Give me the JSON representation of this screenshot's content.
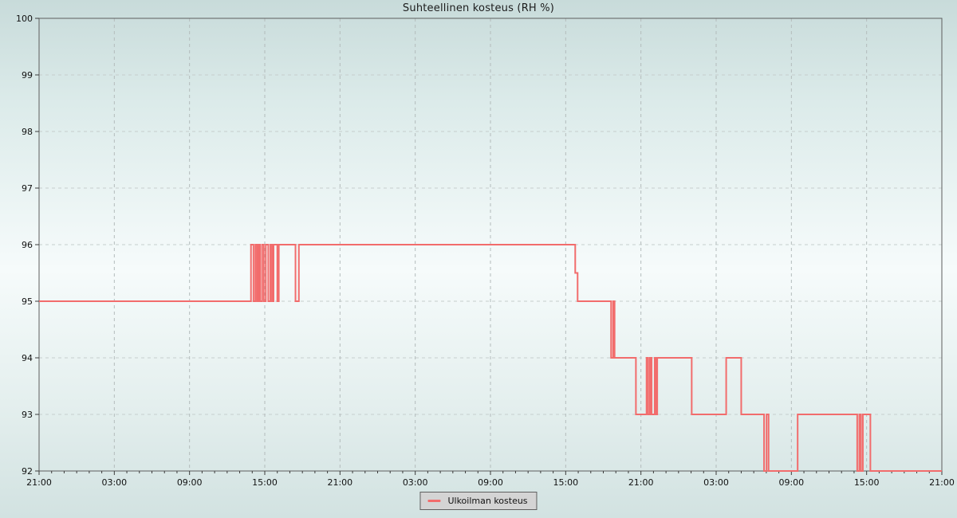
{
  "title": "Suhteellinen kosteus (RH %)",
  "legend": {
    "position": "bottom-center",
    "items": [
      {
        "label": "Ulkoilman kosteus",
        "color": "#f26c6c"
      }
    ]
  },
  "colors": {
    "line": "#f26c6c",
    "frame": "#5d5d5d",
    "grid_horizontal": "#c6cecd",
    "grid_vertical": "#b3bbbb",
    "background_top": "#c8dbda",
    "background_middle": "#f6fbfb",
    "background_bottom": "#d2e2e1",
    "legend_background": "#d4d4d4"
  },
  "chart_data": {
    "type": "line",
    "line_style": "step-after",
    "title": "Suhteellinen kosteus (RH %)",
    "xlabel": "",
    "ylabel": "",
    "grid": "dashed",
    "legend_position": "bottom-center",
    "ylim": [
      92,
      100
    ],
    "y_ticks": [
      100,
      99,
      98,
      97,
      96,
      95,
      94,
      93,
      92
    ],
    "x_hours_range": [
      0,
      72
    ],
    "x_major_step_hours": 6,
    "x_minor_step_hours": 1,
    "x_tick_labels": [
      "21:00",
      "03:00",
      "09:00",
      "15:00",
      "21:00",
      "03:00",
      "09:00",
      "15:00",
      "21:00",
      "03:00",
      "09:00",
      "15:00",
      "21:00"
    ],
    "series": [
      {
        "name": "Ulkoilman kosteus",
        "unit": "RH %",
        "color": "#f26c6c",
        "steps_format": "[hours_since_first_21:00, RH_percent] value holds until next entry",
        "steps": [
          [
            0,
            95
          ],
          [
            16.9,
            96
          ],
          [
            17.1,
            95
          ],
          [
            17.25,
            96
          ],
          [
            17.38,
            95
          ],
          [
            17.5,
            96
          ],
          [
            17.62,
            95
          ],
          [
            17.78,
            96
          ],
          [
            17.92,
            95
          ],
          [
            18.08,
            96
          ],
          [
            18.28,
            95
          ],
          [
            18.45,
            96
          ],
          [
            18.58,
            95
          ],
          [
            18.7,
            96
          ],
          [
            19.0,
            95
          ],
          [
            19.12,
            96
          ],
          [
            20.45,
            95
          ],
          [
            20.72,
            96
          ],
          [
            42.76,
            95.5
          ],
          [
            42.95,
            95
          ],
          [
            45.62,
            94
          ],
          [
            45.78,
            95
          ],
          [
            45.9,
            94
          ],
          [
            47.6,
            93
          ],
          [
            48.45,
            94
          ],
          [
            48.58,
            93
          ],
          [
            48.72,
            94
          ],
          [
            48.85,
            93
          ],
          [
            49.1,
            94
          ],
          [
            49.2,
            93
          ],
          [
            49.3,
            94
          ],
          [
            52.05,
            93
          ],
          [
            54.8,
            94
          ],
          [
            56.0,
            93
          ],
          [
            57.82,
            92
          ],
          [
            58.02,
            93
          ],
          [
            58.18,
            92
          ],
          [
            60.5,
            93
          ],
          [
            65.25,
            92
          ],
          [
            65.42,
            93
          ],
          [
            65.55,
            92
          ],
          [
            65.7,
            93
          ],
          [
            66.3,
            92
          ]
        ]
      }
    ]
  }
}
